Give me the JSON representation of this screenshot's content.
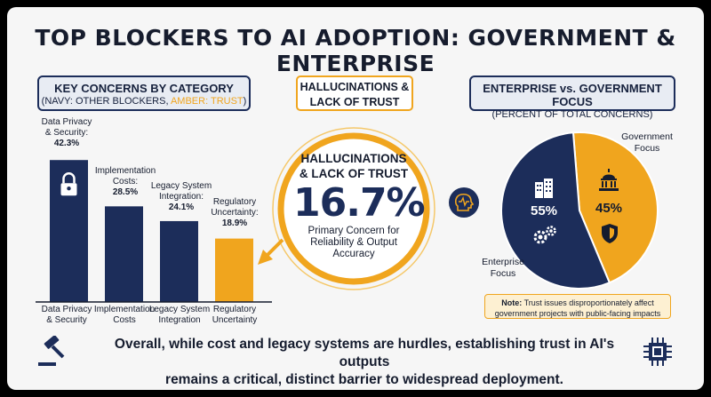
{
  "title": "TOP BLOCKERS TO AI ADOPTION: GOVERNMENT & ENTERPRISE",
  "left_header": {
    "title": "KEY CONCERNS BY CATEGORY",
    "subtitle_prefix": "(NAVY: OTHER BLOCKERS, ",
    "subtitle_amber": "AMBER: TRUST",
    "subtitle_suffix": ")"
  },
  "center_header": {
    "line1": "HALLUCINATIONS &",
    "line2": "LACK OF TRUST"
  },
  "right_header": {
    "title": "ENTERPRISE vs. GOVERNMENT FOCUS",
    "subtitle": "(PERCENT OF TOTAL CONCERNS)"
  },
  "highlight": {
    "heading1": "HALLUCINATIONS",
    "heading2": "& LACK OF TRUST",
    "value": "16.7%",
    "desc1": "Primary Concern for",
    "desc2": "Reliability & Output",
    "desc3": "Accuracy"
  },
  "bar_labels": [
    {
      "line1": "Data Privacy",
      "line2": "& Security:",
      "value": "42.3%"
    },
    {
      "line1": "Implementation",
      "line2": "Costs:",
      "value": "28.5%"
    },
    {
      "line1": "Legacy System",
      "line2": "Integration:",
      "value": "24.1%"
    },
    {
      "line1": "Regulatory",
      "line2": "Uncertainty:",
      "value": "18.9%"
    }
  ],
  "pie_labels": {
    "gov_line1": "Government",
    "gov_line2": "Focus",
    "ent_line1": "Enterprise",
    "ent_line2": "Focus",
    "ent_value": "55%",
    "gov_value": "45%"
  },
  "note": {
    "bold": "Note:",
    "text1": " Trust issues disproportionately affect",
    "text2": "government projects with public-facing impacts"
  },
  "bottom_text": {
    "line1": "Overall, while cost and legacy systems are hurdles, establishing trust in AI's outputs",
    "line2": "remains a critical, distinct barrier to widespread deployment."
  },
  "colors": {
    "navy": "#1c2d5a",
    "amber": "#f0a51e",
    "text": "#151c2e"
  },
  "icons": [
    "lock-icon",
    "head-pulse-icon",
    "buildings-icon",
    "gears-icon",
    "capitol-icon",
    "shield-icon",
    "gavel-icon",
    "chip-icon"
  ],
  "chart_data": [
    {
      "type": "bar",
      "categories": [
        {
          "line1": "Data Privacy",
          "line2": "& Security"
        },
        {
          "line1": "Implementation",
          "line2": "Costs"
        },
        {
          "line1": "Legacy System",
          "line2": "Integration"
        },
        {
          "line1": "Regulatory",
          "line2": "Uncertainty"
        }
      ],
      "values": [
        42.3,
        28.5,
        24.1,
        18.9
      ],
      "colors": [
        "#1c2d5a",
        "#1c2d5a",
        "#1c2d5a",
        "#f0a51e"
      ],
      "ylim": [
        0,
        45
      ],
      "grid": false
    },
    {
      "type": "pie",
      "labels": [
        "Enterprise Focus",
        "Government Focus"
      ],
      "values": [
        55,
        45
      ],
      "colors": [
        "#1c2d5a",
        "#f0a51e"
      ]
    }
  ]
}
